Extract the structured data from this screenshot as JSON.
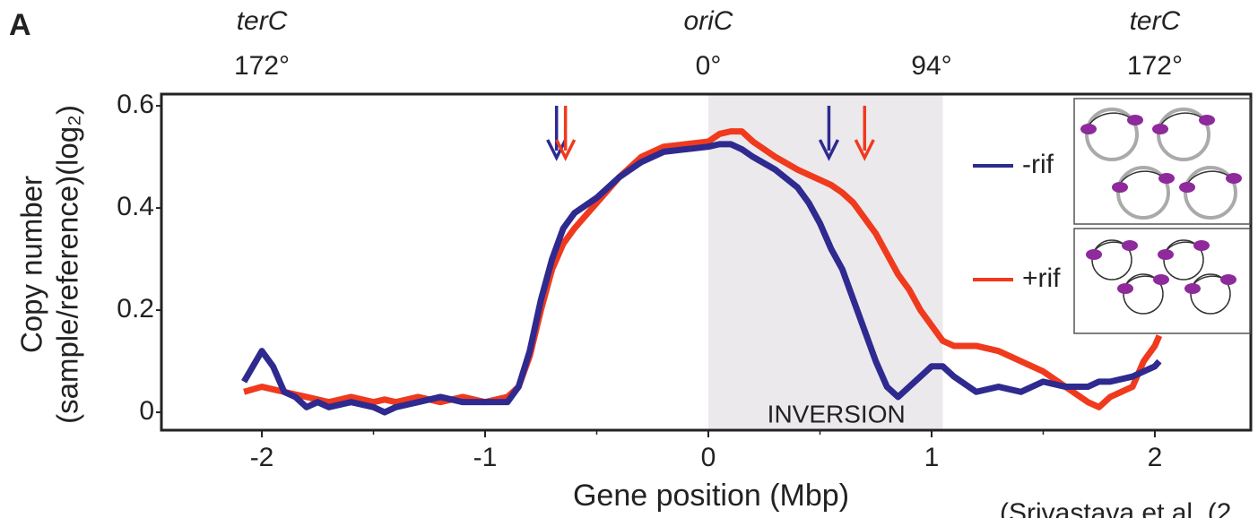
{
  "chart_data": {
    "type": "line",
    "panel_label": "A",
    "x_label": "Gene position (Mbp)",
    "y_label": [
      "Copy number",
      "(sample/reference)(log₂)"
    ],
    "footer": "(Srivastava et al. (2",
    "x": [
      -2.08,
      -2.0,
      -1.95,
      -1.9,
      -1.85,
      -1.8,
      -1.75,
      -1.7,
      -1.6,
      -1.5,
      -1.45,
      -1.4,
      -1.3,
      -1.2,
      -1.1,
      -1.0,
      -0.9,
      -0.85,
      -0.8,
      -0.75,
      -0.7,
      -0.65,
      -0.6,
      -0.5,
      -0.4,
      -0.3,
      -0.2,
      -0.1,
      0,
      0.05,
      0.1,
      0.15,
      0.2,
      0.3,
      0.4,
      0.45,
      0.5,
      0.55,
      0.6,
      0.65,
      0.7,
      0.75,
      0.8,
      0.85,
      0.9,
      0.95,
      1.0,
      1.05,
      1.1,
      1.2,
      1.3,
      1.4,
      1.5,
      1.6,
      1.7,
      1.75,
      1.8,
      1.9,
      1.95,
      2.0,
      2.02
    ],
    "series": [
      {
        "name": "+rif",
        "color": "#f03a1e",
        "values": [
          0.04,
          0.05,
          0.045,
          0.04,
          0.035,
          0.03,
          0.025,
          0.02,
          0.03,
          0.02,
          0.025,
          0.02,
          0.03,
          0.02,
          0.03,
          0.02,
          0.03,
          0.05,
          0.11,
          0.2,
          0.28,
          0.33,
          0.36,
          0.41,
          0.46,
          0.5,
          0.52,
          0.525,
          0.53,
          0.545,
          0.55,
          0.55,
          0.53,
          0.5,
          0.475,
          0.465,
          0.455,
          0.445,
          0.43,
          0.41,
          0.38,
          0.35,
          0.31,
          0.27,
          0.24,
          0.2,
          0.17,
          0.14,
          0.13,
          0.13,
          0.12,
          0.1,
          0.08,
          0.05,
          0.02,
          0.01,
          0.03,
          0.05,
          0.1,
          0.13,
          0.15
        ]
      },
      {
        "name": "-rif",
        "color": "#2e2a8f",
        "values": [
          0.06,
          0.12,
          0.09,
          0.04,
          0.03,
          0.01,
          0.02,
          0.01,
          0.02,
          0.01,
          0,
          0.01,
          0.02,
          0.03,
          0.02,
          0.02,
          0.02,
          0.05,
          0.12,
          0.22,
          0.3,
          0.36,
          0.39,
          0.42,
          0.46,
          0.49,
          0.51,
          0.515,
          0.52,
          0.525,
          0.525,
          0.515,
          0.5,
          0.475,
          0.44,
          0.41,
          0.37,
          0.32,
          0.28,
          0.22,
          0.16,
          0.1,
          0.05,
          0.03,
          0.05,
          0.07,
          0.09,
          0.09,
          0.07,
          0.04,
          0.05,
          0.04,
          0.06,
          0.05,
          0.05,
          0.06,
          0.06,
          0.07,
          0.08,
          0.09,
          0.1
        ]
      }
    ],
    "xlim": [
      -2.45,
      2.43
    ],
    "ylim": [
      -0.035,
      0.623
    ],
    "xticks": [
      -2,
      -1,
      0,
      1,
      2
    ],
    "yticks": [
      0,
      0.2,
      0.4,
      0.6
    ],
    "top_labels": [
      {
        "x": -2,
        "name": "terC",
        "angle": "172°"
      },
      {
        "x": 0,
        "name": "oriC",
        "angle": "0°"
      },
      {
        "x": 1,
        "angle": "94°"
      },
      {
        "x": 2,
        "name": "terC",
        "angle": "172°"
      }
    ],
    "shaded_region": {
      "xlim": [
        0,
        1.05
      ],
      "label": "INVERSION",
      "color": "#ebe9ec"
    },
    "arrows": [
      {
        "x": -0.68,
        "color": "#2e2a8f"
      },
      {
        "x": -0.64,
        "color": "#f03a1e"
      },
      {
        "x": 0.54,
        "color": "#2e2a8f"
      },
      {
        "x": 0.7,
        "color": "#f03a1e"
      }
    ],
    "legend": "right"
  }
}
